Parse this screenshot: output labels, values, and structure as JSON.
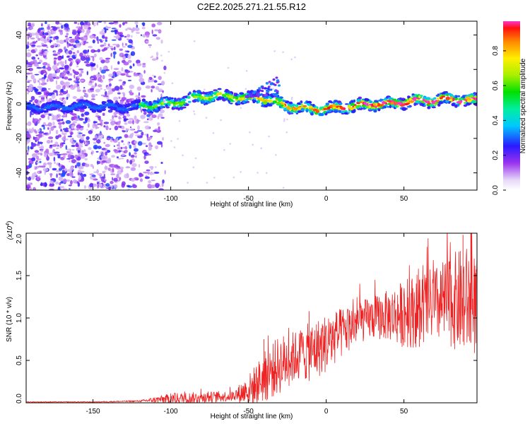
{
  "title": "C2E2.2025.271.21.55.R12",
  "chart_data": [
    {
      "type": "heatmap",
      "name": "spectrogram",
      "xlabel": "Height of straight line (km)",
      "ylabel": "Frequency (Hz)",
      "xlim": [
        -193,
        97
      ],
      "ylim": [
        -50,
        48
      ],
      "xticks": [
        -150,
        -100,
        -50,
        0,
        50
      ],
      "yticks": [
        -40,
        -20,
        0,
        20,
        40
      ],
      "colorbar": {
        "label": "Normalized spectral amplitude",
        "range": [
          0,
          0.97
        ],
        "ticks": [
          0.0,
          0.2,
          0.4,
          0.6,
          0.8
        ]
      },
      "ridge": {
        "description_points_x": [
          -193,
          -175,
          -150,
          -130,
          -115,
          -100,
          -90,
          -80,
          -70,
          -60,
          -50,
          -45,
          -40,
          -35,
          -30,
          -25,
          -20,
          -10,
          0,
          10,
          20,
          30,
          40,
          50,
          60,
          70,
          80,
          90,
          97
        ],
        "frequency_hz": [
          -2,
          -2,
          -1,
          -2,
          -1,
          0,
          2,
          4,
          5,
          4,
          3,
          4,
          3,
          2,
          0,
          -1,
          -2,
          -3,
          -3,
          -2,
          -1,
          0,
          0,
          1,
          2,
          2,
          3,
          2,
          2
        ]
      },
      "noise_region_x": [
        -193,
        -115
      ]
    },
    {
      "type": "line",
      "name": "snr",
      "xlabel": "Height of straight line (km)",
      "ylabel": "SNR (10 * v/v)",
      "scale_label": "(x10",
      "scale_exp": "4",
      "scale_close": ")",
      "xlim": [
        -193,
        97
      ],
      "ylim": [
        0,
        2.0
      ],
      "xticks": [
        -150,
        -100,
        -50,
        0,
        50
      ],
      "yticks": [
        0.0,
        0.5,
        1.0,
        1.5,
        2.0
      ],
      "color": "#ee2222",
      "envelope_x": [
        -193,
        -150,
        -120,
        -100,
        -80,
        -60,
        -50,
        -40,
        -30,
        -20,
        -10,
        0,
        10,
        20,
        30,
        40,
        50,
        60,
        70,
        80,
        90,
        97
      ],
      "envelope_mean": [
        0.01,
        0.01,
        0.02,
        0.05,
        0.06,
        0.08,
        0.15,
        0.3,
        0.45,
        0.55,
        0.6,
        0.7,
        0.82,
        0.95,
        1.0,
        1.03,
        1.05,
        1.1,
        1.15,
        1.2,
        1.2,
        1.15
      ],
      "envelope_amp": [
        0.005,
        0.005,
        0.01,
        0.06,
        0.07,
        0.06,
        0.18,
        0.3,
        0.35,
        0.3,
        0.35,
        0.35,
        0.3,
        0.25,
        0.25,
        0.3,
        0.4,
        0.45,
        0.45,
        0.55,
        0.65,
        0.6
      ],
      "peak_values": [
        {
          "x": -40,
          "y": 0.75
        },
        {
          "x": -11,
          "y": 1.08
        },
        {
          "x": 60,
          "y": 1.45
        },
        {
          "x": 88,
          "y": 1.98
        },
        {
          "x": 93,
          "y": 2.0
        }
      ]
    }
  ],
  "tick_labels": {
    "x": [
      "-150",
      "-100",
      "-50",
      "0",
      "50"
    ],
    "spec_y": [
      "-40",
      "-20",
      "0",
      "20",
      "40"
    ],
    "snr_y": [
      "0.0",
      "0.5",
      "1.0",
      "1.5",
      "2.0"
    ],
    "cbar": [
      "0.0",
      "0.2",
      "0.4",
      "0.6",
      "0.8"
    ]
  }
}
